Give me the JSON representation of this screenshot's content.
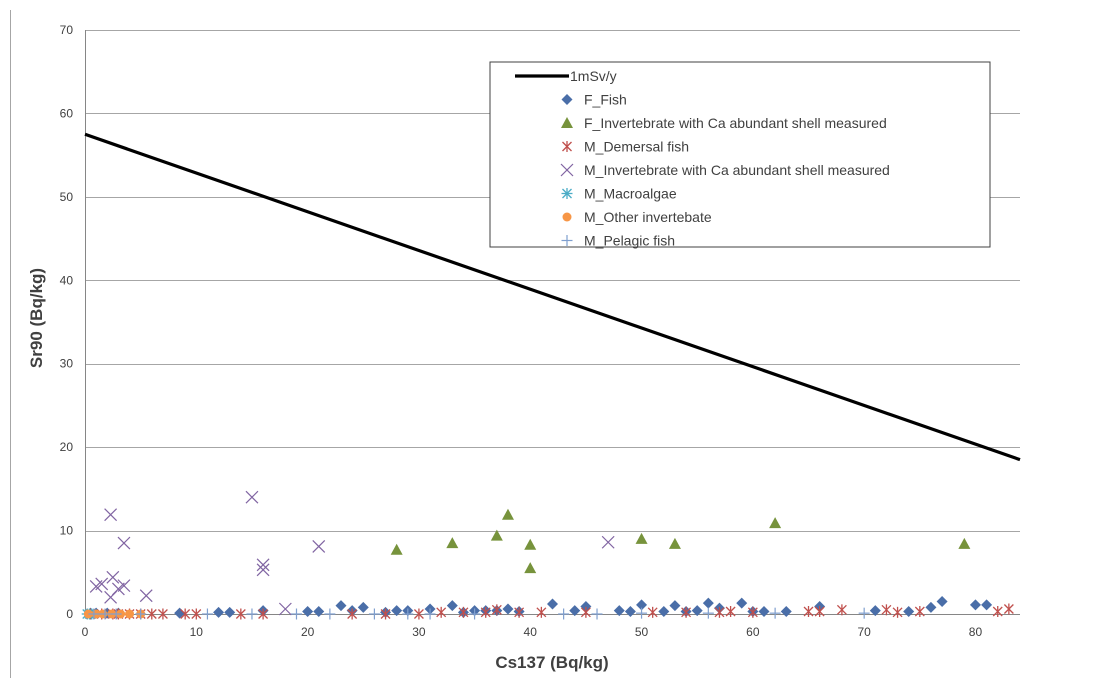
{
  "chart_data": {
    "type": "scatter",
    "xlabel": "Cs137 (Bq/kg)",
    "ylabel": "Sr90 (Bq/kg)",
    "xlim": [
      0,
      84
    ],
    "ylim": [
      0,
      70
    ],
    "x_ticks": [
      0,
      10,
      20,
      30,
      40,
      50,
      60,
      70,
      80
    ],
    "y_ticks": [
      0,
      10,
      20,
      30,
      40,
      50,
      60,
      70
    ],
    "grid": "horizontal",
    "legend_placement": "top-right",
    "series": [
      {
        "name": "1mSv/y",
        "marker": "line",
        "color": "#000000",
        "points": [
          [
            0,
            57.5
          ],
          [
            84,
            18.5
          ]
        ]
      },
      {
        "name": "F_Fish",
        "marker": "diamond",
        "color": "#4a6ea8",
        "points": [
          [
            0.5,
            0.1
          ],
          [
            1,
            0.1
          ],
          [
            2,
            0.1
          ],
          [
            3,
            0.1
          ],
          [
            8.5,
            0.1
          ],
          [
            12,
            0.2
          ],
          [
            13,
            0.2
          ],
          [
            16,
            0.4
          ],
          [
            20,
            0.3
          ],
          [
            21,
            0.3
          ],
          [
            23,
            1.0
          ],
          [
            24,
            0.4
          ],
          [
            25,
            0.8
          ],
          [
            27,
            0.2
          ],
          [
            28,
            0.4
          ],
          [
            29,
            0.4
          ],
          [
            31,
            0.6
          ],
          [
            33,
            1.0
          ],
          [
            34,
            0.2
          ],
          [
            35,
            0.4
          ],
          [
            36,
            0.4
          ],
          [
            37,
            0.4
          ],
          [
            38,
            0.6
          ],
          [
            39,
            0.3
          ],
          [
            42,
            1.2
          ],
          [
            44,
            0.4
          ],
          [
            45,
            0.9
          ],
          [
            48,
            0.4
          ],
          [
            49,
            0.3
          ],
          [
            50,
            1.1
          ],
          [
            52,
            0.3
          ],
          [
            53,
            1.0
          ],
          [
            54,
            0.3
          ],
          [
            55,
            0.4
          ],
          [
            56,
            1.3
          ],
          [
            57,
            0.7
          ],
          [
            59,
            1.3
          ],
          [
            60,
            0.3
          ],
          [
            61,
            0.3
          ],
          [
            63,
            0.3
          ],
          [
            66,
            0.9
          ],
          [
            71,
            0.4
          ],
          [
            74,
            0.3
          ],
          [
            76,
            0.8
          ],
          [
            77,
            1.5
          ],
          [
            80,
            1.1
          ],
          [
            81,
            1.1
          ]
        ]
      },
      {
        "name": "F_Invertebrate with Ca abundant shell measured",
        "marker": "triangle",
        "color": "#77933c",
        "points": [
          [
            28,
            7.7
          ],
          [
            33,
            8.5
          ],
          [
            37,
            9.4
          ],
          [
            38,
            11.9
          ],
          [
            40,
            8.3
          ],
          [
            40,
            5.5
          ],
          [
            50,
            9.0
          ],
          [
            53,
            8.4
          ],
          [
            62,
            10.9
          ],
          [
            79,
            8.4
          ]
        ]
      },
      {
        "name": "M_Demersal fish",
        "marker": "asterisk",
        "color": "#c0504d",
        "points": [
          [
            0.5,
            0
          ],
          [
            1.5,
            0
          ],
          [
            2.5,
            0
          ],
          [
            3,
            0
          ],
          [
            4,
            0
          ],
          [
            5,
            0
          ],
          [
            6,
            0
          ],
          [
            7,
            0
          ],
          [
            9,
            0
          ],
          [
            10,
            0
          ],
          [
            14,
            0
          ],
          [
            16,
            0
          ],
          [
            24,
            0
          ],
          [
            27,
            0
          ],
          [
            30,
            0
          ],
          [
            32,
            0.2
          ],
          [
            34,
            0.2
          ],
          [
            36,
            0.2
          ],
          [
            37,
            0.5
          ],
          [
            39,
            0.2
          ],
          [
            41,
            0.2
          ],
          [
            45,
            0.2
          ],
          [
            51,
            0.2
          ],
          [
            54,
            0.2
          ],
          [
            57,
            0.2
          ],
          [
            58,
            0.3
          ],
          [
            60,
            0.2
          ],
          [
            65,
            0.3
          ],
          [
            66,
            0.3
          ],
          [
            68,
            0.5
          ],
          [
            72,
            0.5
          ],
          [
            73,
            0.2
          ],
          [
            75,
            0.3
          ],
          [
            82,
            0.3
          ],
          [
            83,
            0.6
          ]
        ]
      },
      {
        "name": "M_Invertebrate with Ca abundant shell measured",
        "marker": "x",
        "color": "#8064a2",
        "points": [
          [
            1,
            3.3
          ],
          [
            1.5,
            3.6
          ],
          [
            2.3,
            11.9
          ],
          [
            2.3,
            2.0
          ],
          [
            2.5,
            4.4
          ],
          [
            3,
            3.0
          ],
          [
            3.5,
            3.4
          ],
          [
            3.5,
            8.5
          ],
          [
            5.5,
            2.2
          ],
          [
            15,
            14.0
          ],
          [
            16,
            5.3
          ],
          [
            16,
            5.9
          ],
          [
            18,
            0.6
          ],
          [
            21,
            8.1
          ],
          [
            47,
            8.6
          ]
        ]
      },
      {
        "name": "M_Macroalgae",
        "marker": "star",
        "color": "#4bacc6",
        "points": [
          [
            0.2,
            0
          ],
          [
            0.4,
            0
          ],
          [
            0.6,
            0
          ]
        ]
      },
      {
        "name": "M_Other invertebate",
        "marker": "circle",
        "color": "#f79646",
        "points": [
          [
            0.3,
            0
          ],
          [
            1,
            0
          ],
          [
            1.6,
            0
          ],
          [
            2.4,
            0
          ],
          [
            3.2,
            0
          ],
          [
            4,
            0
          ],
          [
            5,
            0
          ]
        ]
      },
      {
        "name": "M_Pelagic fish",
        "marker": "plus",
        "color": "#7f9fcf",
        "points": [
          [
            0.8,
            0
          ],
          [
            1.8,
            0
          ],
          [
            2.8,
            0
          ],
          [
            5,
            0
          ],
          [
            11,
            0
          ],
          [
            15,
            0
          ],
          [
            19,
            0
          ],
          [
            22,
            0
          ],
          [
            26,
            0
          ],
          [
            29,
            0
          ],
          [
            31,
            0
          ],
          [
            35,
            0
          ],
          [
            43,
            0
          ],
          [
            46,
            0
          ],
          [
            50,
            0.1
          ],
          [
            56,
            0.1
          ],
          [
            62,
            0.1
          ],
          [
            70,
            0.1
          ]
        ]
      }
    ]
  }
}
